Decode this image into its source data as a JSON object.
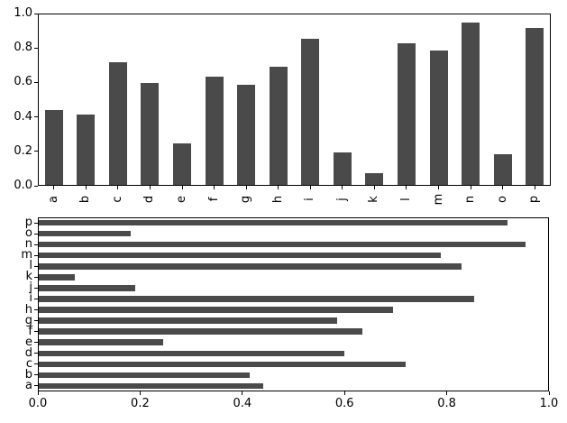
{
  "figure": {
    "background_color": "#ffffff",
    "bar_color": "#4a4a4a",
    "axis_color": "#000000",
    "text_color": "#000000"
  },
  "chart_data": [
    {
      "type": "bar",
      "title": "",
      "xlabel": "",
      "ylabel": "",
      "categories": [
        "a",
        "b",
        "c",
        "d",
        "e",
        "f",
        "g",
        "h",
        "i",
        "j",
        "k",
        "l",
        "m",
        "n",
        "o",
        "p"
      ],
      "values": [
        0.44,
        0.415,
        0.72,
        0.6,
        0.245,
        0.635,
        0.585,
        0.695,
        0.855,
        0.19,
        0.07,
        0.83,
        0.79,
        0.955,
        0.18,
        0.92
      ],
      "ylim": [
        0.0,
        1.0
      ],
      "ytick_labels": [
        "0.0",
        "0.2",
        "0.4",
        "0.6",
        "0.8",
        "1.0"
      ],
      "ytick_values": [
        0.0,
        0.2,
        0.4,
        0.6,
        0.8,
        1.0
      ],
      "xtick_rotation_deg": 90,
      "grid": false,
      "legend": "none",
      "bar_color": "#4a4a4a"
    },
    {
      "type": "barh",
      "title": "",
      "xlabel": "",
      "ylabel": "",
      "categories": [
        "a",
        "b",
        "c",
        "d",
        "e",
        "f",
        "g",
        "h",
        "i",
        "j",
        "k",
        "l",
        "m",
        "n",
        "o",
        "p"
      ],
      "values": [
        0.44,
        0.415,
        0.72,
        0.6,
        0.245,
        0.635,
        0.585,
        0.695,
        0.855,
        0.19,
        0.07,
        0.83,
        0.79,
        0.955,
        0.18,
        0.92
      ],
      "category_order_note": "a at bottom, p at top",
      "xlim": [
        0.0,
        1.0
      ],
      "xtick_labels": [
        "0.0",
        "0.2",
        "0.4",
        "0.6",
        "0.8",
        "1.0"
      ],
      "xtick_values": [
        0.0,
        0.2,
        0.4,
        0.6,
        0.8,
        1.0
      ],
      "grid": false,
      "legend": "none",
      "bar_color": "#4a4a4a"
    }
  ]
}
